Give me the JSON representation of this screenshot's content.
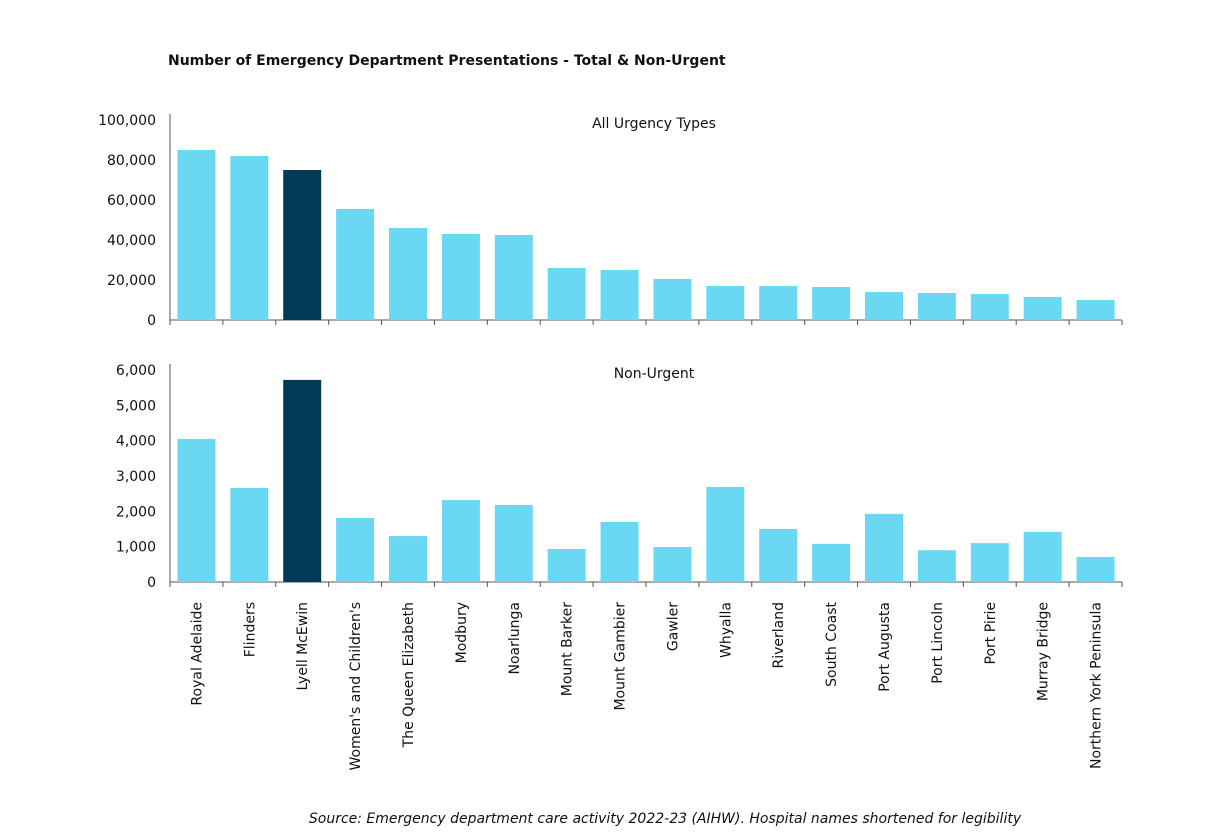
{
  "title": "Number of Emergency Department Presentations - Total & Non-Urgent",
  "source": "Source: Emergency department care activity 2022-23 (AIHW). Hospital names shortened for legibility",
  "chart_data": [
    {
      "type": "bar",
      "subtitle": "All Urgency Types",
      "values": [
        85000,
        82000,
        75000,
        55500,
        46000,
        43000,
        42500,
        26000,
        25000,
        20500,
        17000,
        17000,
        16500,
        14000,
        13500,
        13000,
        11500,
        10000
      ],
      "colors": [
        "#6ad8f2",
        "#6ad8f2",
        "#003a57",
        "#6ad8f2",
        "#6ad8f2",
        "#6ad8f2",
        "#6ad8f2",
        "#6ad8f2",
        "#6ad8f2",
        "#6ad8f2",
        "#6ad8f2",
        "#6ad8f2",
        "#6ad8f2",
        "#6ad8f2",
        "#6ad8f2",
        "#6ad8f2",
        "#6ad8f2",
        "#6ad8f2"
      ],
      "ylim": [
        0,
        100000
      ],
      "yticks": [
        0,
        {
          "value": 20000,
          "label": "20,000"
        },
        {
          "value": 40000,
          "label": "40,000"
        },
        {
          "value": 60000,
          "label": "60,000"
        },
        {
          "value": 80000,
          "label": "80,000"
        },
        {
          "value": 100000,
          "label": "100,000"
        }
      ]
    },
    {
      "type": "bar",
      "subtitle": "Non-Urgent",
      "categories": [
        "Royal Adelaide",
        "Flinders",
        "Lyell McEwin",
        "Women's and Children's",
        "The Queen Elizabeth",
        "Modbury",
        "Noarlunga",
        "Mount Barker",
        "Mount Gambier",
        "Gawler",
        "Whyalla",
        "Riverland",
        "South Coast",
        "Port Augusta",
        "Port Lincoln",
        "Port Pirie",
        "Murray Bridge",
        "Northern York Peninsula"
      ],
      "values": [
        4050,
        2660,
        5720,
        1810,
        1300,
        2320,
        2180,
        935,
        1700,
        990,
        2690,
        1500,
        1080,
        1930,
        900,
        1100,
        1420,
        710
      ],
      "colors": [
        "#6ad8f2",
        "#6ad8f2",
        "#003a57",
        "#6ad8f2",
        "#6ad8f2",
        "#6ad8f2",
        "#6ad8f2",
        "#6ad8f2",
        "#6ad8f2",
        "#6ad8f2",
        "#6ad8f2",
        "#6ad8f2",
        "#6ad8f2",
        "#6ad8f2",
        "#6ad8f2",
        "#6ad8f2",
        "#6ad8f2",
        "#6ad8f2"
      ],
      "ylim": [
        0,
        6000
      ],
      "yticks": [
        0,
        {
          "value": 1000,
          "label": "1,000"
        },
        {
          "value": 2000,
          "label": "2,000"
        },
        {
          "value": 3000,
          "label": "3,000"
        },
        {
          "value": 4000,
          "label": "4,000"
        },
        {
          "value": 5000,
          "label": "5,000"
        },
        {
          "value": 6000,
          "label": "6,000"
        }
      ]
    }
  ]
}
